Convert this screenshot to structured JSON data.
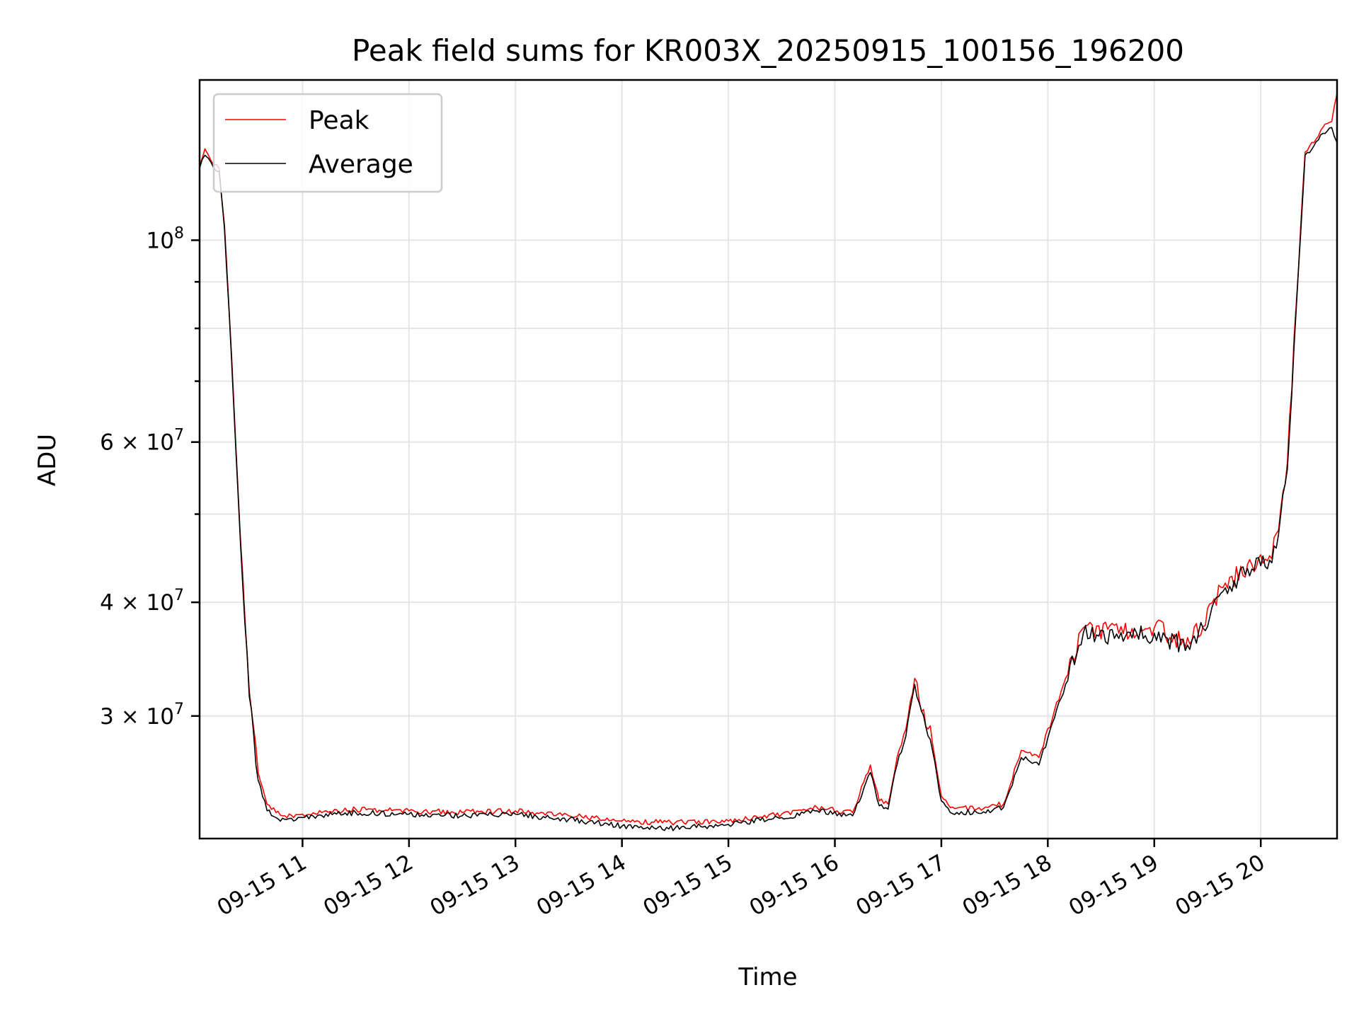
{
  "chart_data": {
    "type": "line",
    "title": "Peak field sums for KR003X_20250915_100156_196200",
    "xlabel": "Time",
    "ylabel": "ADU",
    "yscale": "log",
    "ylim": [
      22000000,
      150000000
    ],
    "xlim": [
      "2025-09-15 10:02",
      "2025-09-15 20:43"
    ],
    "grid": true,
    "legend_position": "top-left",
    "x_ticks": [
      "2025-09-15 11:00",
      "2025-09-15 12:00",
      "2025-09-15 13:00",
      "2025-09-15 14:00",
      "2025-09-15 15:00",
      "2025-09-15 16:00",
      "2025-09-15 17:00",
      "2025-09-15 18:00",
      "2025-09-15 19:00",
      "2025-09-15 20:00"
    ],
    "x_tick_labels": [
      "09-15 11",
      "09-15 12",
      "09-15 13",
      "09-15 14",
      "09-15 15",
      "09-15 16",
      "09-15 17",
      "09-15 18",
      "09-15 19",
      "09-15 20"
    ],
    "y_major_ticks": [
      {
        "value": 30000000,
        "mantissa": "3",
        "exp": "7"
      },
      {
        "value": 40000000,
        "mantissa": "4",
        "exp": "7"
      },
      {
        "value": 60000000,
        "mantissa": "6",
        "exp": "7"
      },
      {
        "value": 100000000,
        "mantissa": "",
        "exp": "8"
      }
    ],
    "y_minor_ticks": [
      50000000,
      70000000,
      80000000,
      90000000
    ],
    "series": [
      {
        "name": "Peak",
        "color": "#ff0000",
        "x": [
          "2025-09-15 10:02",
          "2025-09-15 10:05",
          "2025-09-15 10:07",
          "2025-09-15 10:10",
          "2025-09-15 10:13",
          "2025-09-15 10:16",
          "2025-09-15 10:20",
          "2025-09-15 10:25",
          "2025-09-15 10:30",
          "2025-09-15 10:35",
          "2025-09-15 10:40",
          "2025-09-15 10:45",
          "2025-09-15 10:50",
          "2025-09-15 10:55",
          "2025-09-15 11:00",
          "2025-09-15 11:30",
          "2025-09-15 12:00",
          "2025-09-15 12:30",
          "2025-09-15 13:00",
          "2025-09-15 13:30",
          "2025-09-15 14:00",
          "2025-09-15 14:30",
          "2025-09-15 15:00",
          "2025-09-15 15:30",
          "2025-09-15 15:50",
          "2025-09-15 16:10",
          "2025-09-15 16:20",
          "2025-09-15 16:25",
          "2025-09-15 16:30",
          "2025-09-15 16:35",
          "2025-09-15 16:40",
          "2025-09-15 16:45",
          "2025-09-15 16:50",
          "2025-09-15 16:55",
          "2025-09-15 17:00",
          "2025-09-15 17:05",
          "2025-09-15 17:20",
          "2025-09-15 17:35",
          "2025-09-15 17:45",
          "2025-09-15 17:55",
          "2025-09-15 18:10",
          "2025-09-15 18:20",
          "2025-09-15 18:40",
          "2025-09-15 19:00",
          "2025-09-15 19:20",
          "2025-09-15 19:40",
          "2025-09-15 19:55",
          "2025-09-15 20:05",
          "2025-09-15 20:10",
          "2025-09-15 20:15",
          "2025-09-15 20:20",
          "2025-09-15 20:25",
          "2025-09-15 20:30",
          "2025-09-15 20:35",
          "2025-09-15 20:40",
          "2025-09-15 20:43"
        ],
        "y": [
          121000000,
          126000000,
          124000000,
          121000000,
          120000000,
          104000000,
          75000000,
          47000000,
          32000000,
          26000000,
          24000000,
          23500000,
          23300000,
          23200000,
          23400000,
          23700000,
          23600000,
          23500000,
          23600000,
          23300000,
          23000000,
          22900000,
          23000000,
          23400000,
          23800000,
          23500000,
          26500000,
          24200000,
          24000000,
          27000000,
          29000000,
          33000000,
          30500000,
          28000000,
          24500000,
          23800000,
          23700000,
          24000000,
          27500000,
          27000000,
          33000000,
          37500000,
          37000000,
          37500000,
          36000000,
          42000000,
          44000000,
          45000000,
          48000000,
          57000000,
          85000000,
          125000000,
          128000000,
          133000000,
          135000000,
          145000000
        ]
      },
      {
        "name": "Average",
        "color": "#000000",
        "x": [
          "2025-09-15 10:02",
          "2025-09-15 10:05",
          "2025-09-15 10:07",
          "2025-09-15 10:10",
          "2025-09-15 10:13",
          "2025-09-15 10:16",
          "2025-09-15 10:20",
          "2025-09-15 10:25",
          "2025-09-15 10:30",
          "2025-09-15 10:35",
          "2025-09-15 10:40",
          "2025-09-15 10:45",
          "2025-09-15 10:50",
          "2025-09-15 10:55",
          "2025-09-15 11:00",
          "2025-09-15 11:30",
          "2025-09-15 12:00",
          "2025-09-15 12:30",
          "2025-09-15 13:00",
          "2025-09-15 13:30",
          "2025-09-15 14:00",
          "2025-09-15 14:30",
          "2025-09-15 15:00",
          "2025-09-15 15:30",
          "2025-09-15 15:50",
          "2025-09-15 16:10",
          "2025-09-15 16:20",
          "2025-09-15 16:25",
          "2025-09-15 16:30",
          "2025-09-15 16:35",
          "2025-09-15 16:40",
          "2025-09-15 16:45",
          "2025-09-15 16:50",
          "2025-09-15 16:55",
          "2025-09-15 17:00",
          "2025-09-15 17:05",
          "2025-09-15 17:20",
          "2025-09-15 17:35",
          "2025-09-15 17:45",
          "2025-09-15 17:55",
          "2025-09-15 18:10",
          "2025-09-15 18:20",
          "2025-09-15 18:40",
          "2025-09-15 19:00",
          "2025-09-15 19:20",
          "2025-09-15 19:40",
          "2025-09-15 19:55",
          "2025-09-15 20:05",
          "2025-09-15 20:10",
          "2025-09-15 20:15",
          "2025-09-15 20:20",
          "2025-09-15 20:25",
          "2025-09-15 20:30",
          "2025-09-15 20:35",
          "2025-09-15 20:40",
          "2025-09-15 20:43"
        ],
        "y": [
          120000000,
          124000000,
          123000000,
          120000000,
          119000000,
          103000000,
          74000000,
          46500000,
          31500000,
          25500000,
          23600000,
          23200000,
          23100000,
          23000000,
          23200000,
          23500000,
          23400000,
          23300000,
          23400000,
          23100000,
          22700000,
          22600000,
          22800000,
          23200000,
          23600000,
          23300000,
          26000000,
          23900000,
          23700000,
          26500000,
          28500000,
          32500000,
          30000000,
          27500000,
          24200000,
          23500000,
          23500000,
          23800000,
          27000000,
          26500000,
          32500000,
          37000000,
          36500000,
          37000000,
          35500000,
          41500000,
          43500000,
          44500000,
          47500000,
          56000000,
          84000000,
          124000000,
          127000000,
          131000000,
          133000000,
          128000000
        ]
      }
    ]
  }
}
